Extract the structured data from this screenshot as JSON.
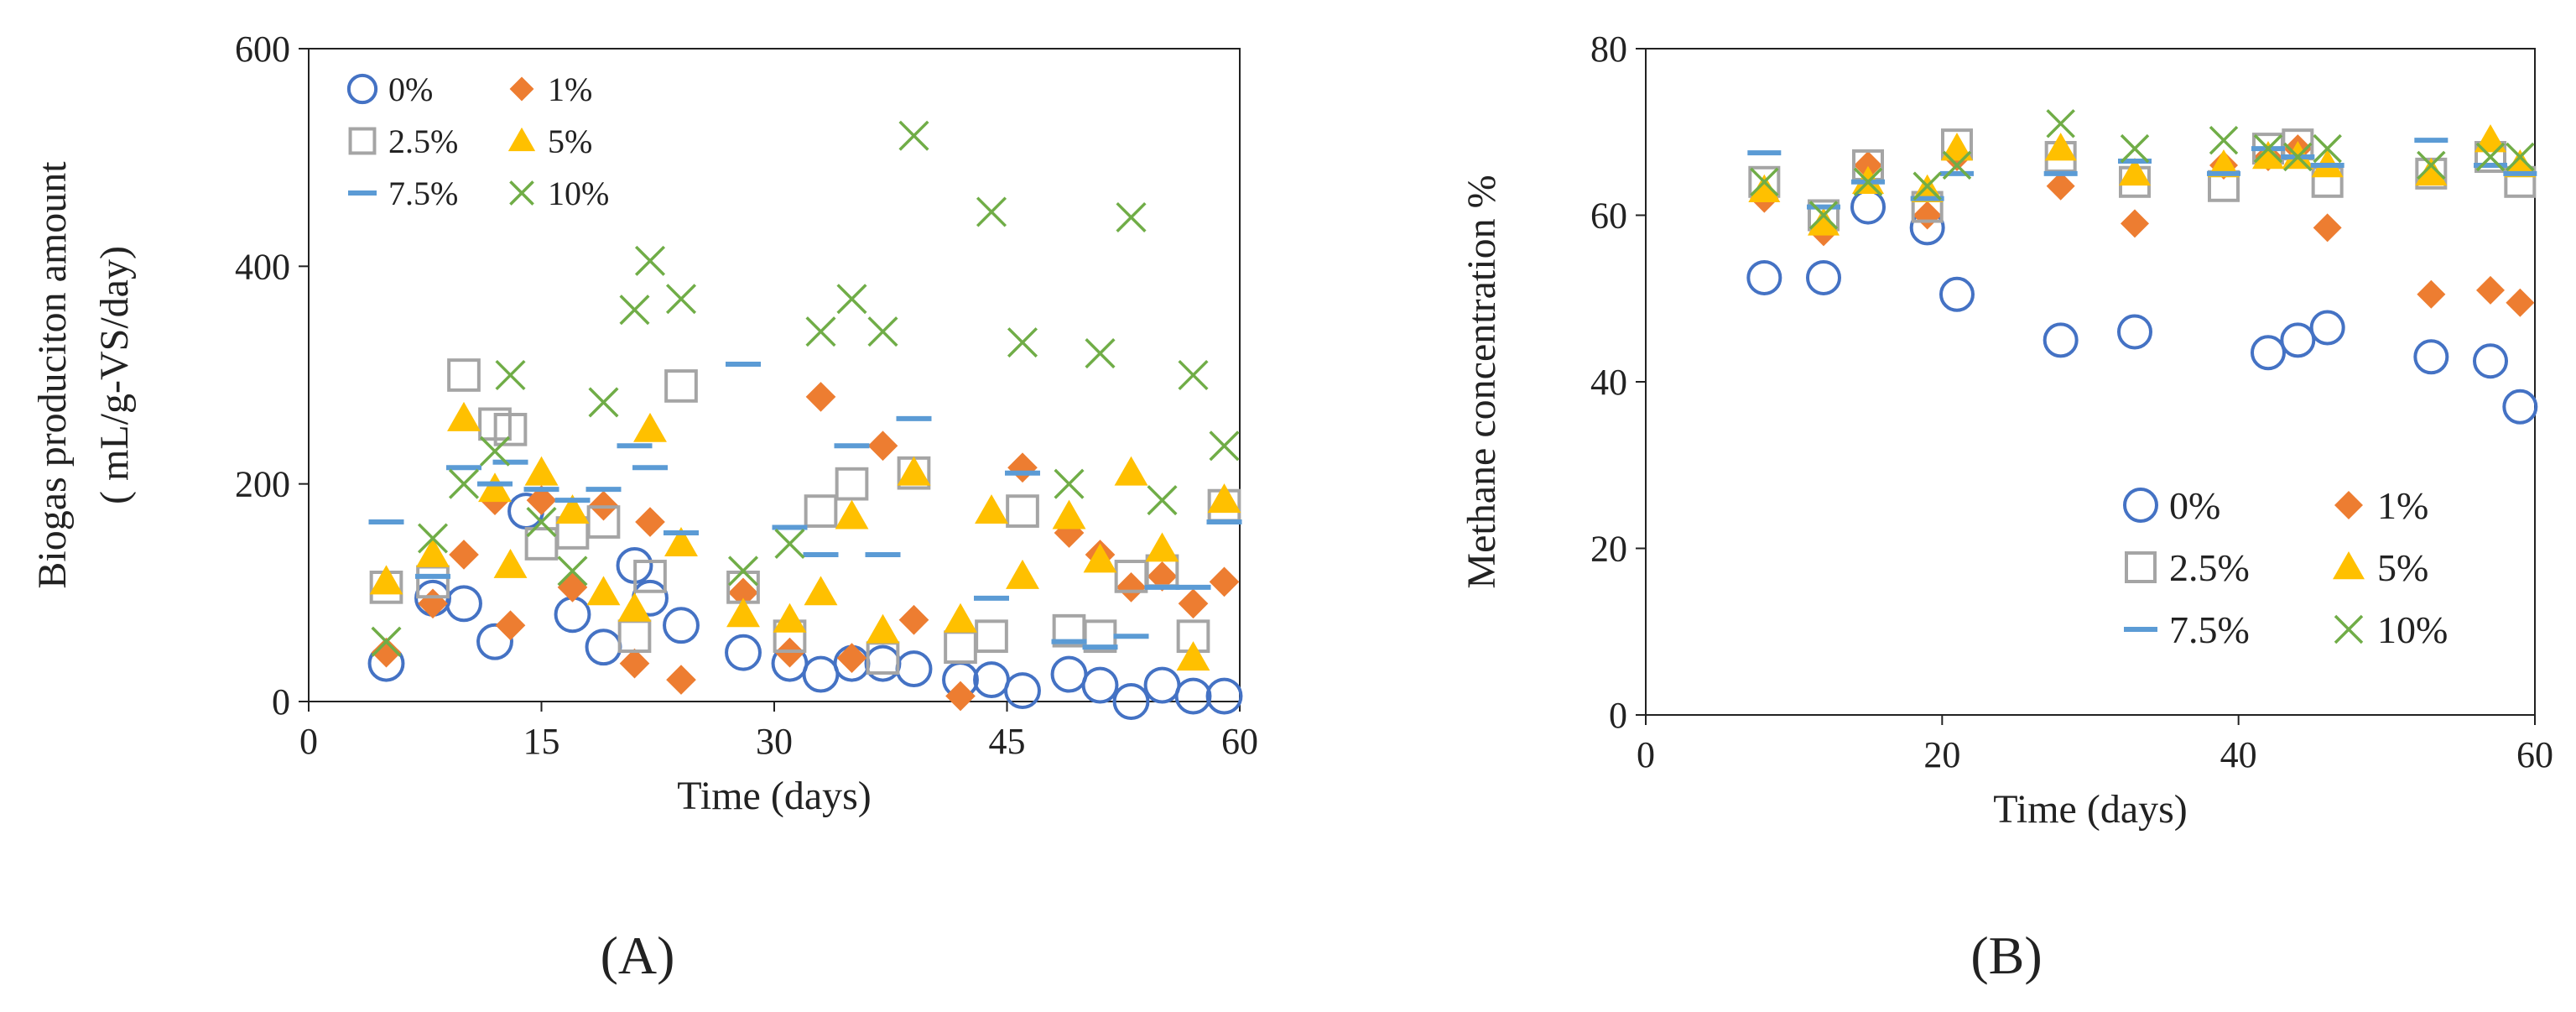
{
  "figure_labels": {
    "a": "(A)",
    "b": "(B)"
  },
  "colors": {
    "0%": "#4472C4",
    "1%": "#ED7D31",
    "2.5%": "#A5A5A5",
    "5%": "#FFC000",
    "7.5%": "#5B9BD5",
    "10%": "#70AD47"
  },
  "markers": {
    "0%": "circle",
    "1%": "diamond",
    "2.5%": "square",
    "5%": "triangle",
    "7.5%": "dash",
    "10%": "x"
  },
  "chart_data": [
    {
      "type": "scatter",
      "title": "",
      "xlabel": "Time (days)",
      "ylabel_line1": "Biogas produciton amount",
      "ylabel_line2": "( mL/g-VS/day)",
      "xlim": [
        0,
        60
      ],
      "ylim": [
        0,
        600
      ],
      "xticks": [
        "0",
        "15",
        "30",
        "45",
        "60"
      ],
      "yticks": [
        "0",
        "200",
        "400",
        "600"
      ],
      "legend_position": "top-left",
      "series": [
        {
          "name": "0%",
          "points": [
            [
              5,
              35
            ],
            [
              8,
              95
            ],
            [
              10,
              90
            ],
            [
              12,
              55
            ],
            [
              14,
              175
            ],
            [
              17,
              80
            ],
            [
              19,
              50
            ],
            [
              21,
              125
            ],
            [
              22,
              95
            ],
            [
              24,
              70
            ],
            [
              28,
              45
            ],
            [
              31,
              35
            ],
            [
              33,
              25
            ],
            [
              35,
              35
            ],
            [
              37,
              35
            ],
            [
              39,
              30
            ],
            [
              42,
              20
            ],
            [
              44,
              20
            ],
            [
              46,
              10
            ],
            [
              49,
              25
            ],
            [
              51,
              15
            ],
            [
              53,
              0
            ],
            [
              55,
              15
            ],
            [
              57,
              5
            ],
            [
              59,
              5
            ]
          ]
        },
        {
          "name": "1%",
          "points": [
            [
              5,
              45
            ],
            [
              8,
              90
            ],
            [
              10,
              135
            ],
            [
              12,
              185
            ],
            [
              13,
              70
            ],
            [
              15,
              185
            ],
            [
              17,
              105
            ],
            [
              19,
              180
            ],
            [
              21,
              35
            ],
            [
              22,
              165
            ],
            [
              24,
              20
            ],
            [
              28,
              100
            ],
            [
              31,
              45
            ],
            [
              33,
              280
            ],
            [
              35,
              40
            ],
            [
              37,
              235
            ],
            [
              39,
              75
            ],
            [
              42,
              5
            ],
            [
              46,
              215
            ],
            [
              49,
              155
            ],
            [
              51,
              135
            ],
            [
              53,
              105
            ],
            [
              55,
              115
            ],
            [
              57,
              90
            ],
            [
              59,
              110
            ]
          ]
        },
        {
          "name": "2.5%",
          "points": [
            [
              5,
              105
            ],
            [
              8,
              110
            ],
            [
              10,
              300
            ],
            [
              12,
              255
            ],
            [
              13,
              250
            ],
            [
              15,
              145
            ],
            [
              17,
              155
            ],
            [
              19,
              165
            ],
            [
              21,
              60
            ],
            [
              22,
              115
            ],
            [
              24,
              290
            ],
            [
              28,
              105
            ],
            [
              31,
              60
            ],
            [
              33,
              175
            ],
            [
              35,
              200
            ],
            [
              37,
              40
            ],
            [
              39,
              210
            ],
            [
              42,
              50
            ],
            [
              44,
              60
            ],
            [
              46,
              175
            ],
            [
              49,
              65
            ],
            [
              51,
              60
            ],
            [
              53,
              115
            ],
            [
              55,
              120
            ],
            [
              57,
              60
            ],
            [
              59,
              180
            ]
          ]
        },
        {
          "name": "5%",
          "points": [
            [
              5,
              110
            ],
            [
              8,
              135
            ],
            [
              10,
              260
            ],
            [
              12,
              195
            ],
            [
              13,
              125
            ],
            [
              15,
              210
            ],
            [
              17,
              175
            ],
            [
              19,
              100
            ],
            [
              21,
              85
            ],
            [
              22,
              250
            ],
            [
              24,
              145
            ],
            [
              28,
              80
            ],
            [
              31,
              75
            ],
            [
              33,
              100
            ],
            [
              35,
              170
            ],
            [
              37,
              65
            ],
            [
              39,
              210
            ],
            [
              42,
              75
            ],
            [
              44,
              175
            ],
            [
              46,
              115
            ],
            [
              49,
              170
            ],
            [
              51,
              130
            ],
            [
              53,
              210
            ],
            [
              55,
              140
            ],
            [
              57,
              40
            ],
            [
              59,
              185
            ]
          ]
        },
        {
          "name": "7.5%",
          "points": [
            [
              5,
              165
            ],
            [
              8,
              115
            ],
            [
              10,
              215
            ],
            [
              12,
              200
            ],
            [
              13,
              220
            ],
            [
              15,
              195
            ],
            [
              17,
              185
            ],
            [
              19,
              195
            ],
            [
              21,
              235
            ],
            [
              22,
              215
            ],
            [
              24,
              155
            ],
            [
              28,
              310
            ],
            [
              31,
              160
            ],
            [
              33,
              135
            ],
            [
              35,
              235
            ],
            [
              37,
              135
            ],
            [
              39,
              260
            ],
            [
              44,
              95
            ],
            [
              46,
              210
            ],
            [
              49,
              55
            ],
            [
              51,
              50
            ],
            [
              53,
              60
            ],
            [
              55,
              105
            ],
            [
              57,
              105
            ],
            [
              59,
              165
            ]
          ]
        },
        {
          "name": "10%",
          "points": [
            [
              5,
              55
            ],
            [
              8,
              150
            ],
            [
              10,
              200
            ],
            [
              12,
              230
            ],
            [
              13,
              300
            ],
            [
              15,
              165
            ],
            [
              17,
              120
            ],
            [
              19,
              275
            ],
            [
              21,
              360
            ],
            [
              22,
              405
            ],
            [
              24,
              370
            ],
            [
              28,
              120
            ],
            [
              31,
              145
            ],
            [
              33,
              340
            ],
            [
              35,
              370
            ],
            [
              37,
              340
            ],
            [
              39,
              520
            ],
            [
              44,
              450
            ],
            [
              46,
              330
            ],
            [
              49,
              200
            ],
            [
              51,
              320
            ],
            [
              53,
              445
            ],
            [
              55,
              185
            ],
            [
              57,
              300
            ],
            [
              59,
              235
            ]
          ]
        }
      ]
    },
    {
      "type": "scatter",
      "title": "",
      "xlabel": "Time (days)",
      "ylabel": "Methane concentration %",
      "xlim": [
        0,
        60
      ],
      "ylim": [
        0,
        80
      ],
      "xticks": [
        "0",
        "20",
        "40",
        "60"
      ],
      "yticks": [
        "0",
        "20",
        "40",
        "60",
        "80"
      ],
      "legend_position": "bottom-right",
      "series": [
        {
          "name": "0%",
          "points": [
            [
              8,
              52.5
            ],
            [
              12,
              52.5
            ],
            [
              15,
              61
            ],
            [
              19,
              58.5
            ],
            [
              21,
              50.5
            ],
            [
              28,
              45
            ],
            [
              33,
              46
            ],
            [
              42,
              43.5
            ],
            [
              44,
              45
            ],
            [
              46,
              46.5
            ],
            [
              53,
              43
            ],
            [
              57,
              42.5
            ],
            [
              59,
              37
            ]
          ]
        },
        {
          "name": "1%",
          "points": [
            [
              8,
              62
            ],
            [
              12,
              58
            ],
            [
              15,
              66
            ],
            [
              19,
              60
            ],
            [
              21,
              67
            ],
            [
              28,
              63.5
            ],
            [
              33,
              59
            ],
            [
              39,
              66
            ],
            [
              42,
              67
            ],
            [
              44,
              68
            ],
            [
              46,
              58.5
            ],
            [
              53,
              50.5
            ],
            [
              57,
              51
            ],
            [
              59,
              49.5
            ]
          ]
        },
        {
          "name": "2.5%",
          "points": [
            [
              8,
              64
            ],
            [
              12,
              60
            ],
            [
              15,
              66
            ],
            [
              19,
              61
            ],
            [
              21,
              68.5
            ],
            [
              28,
              67
            ],
            [
              33,
              64
            ],
            [
              39,
              63.5
            ],
            [
              42,
              68
            ],
            [
              44,
              68.5
            ],
            [
              46,
              64
            ],
            [
              53,
              65
            ],
            [
              57,
              67
            ],
            [
              59,
              64
            ]
          ]
        },
        {
          "name": "5%",
          "points": [
            [
              8,
              63
            ],
            [
              12,
              59
            ],
            [
              15,
              64
            ],
            [
              19,
              63
            ],
            [
              21,
              68
            ],
            [
              28,
              68
            ],
            [
              33,
              65
            ],
            [
              39,
              66
            ],
            [
              42,
              67
            ],
            [
              44,
              67
            ],
            [
              46,
              66
            ],
            [
              53,
              65
            ],
            [
              57,
              69
            ],
            [
              59,
              66
            ]
          ]
        },
        {
          "name": "7.5%",
          "points": [
            [
              8,
              67.5
            ],
            [
              12,
              61
            ],
            [
              15,
              64
            ],
            [
              19,
              62
            ],
            [
              21,
              65
            ],
            [
              28,
              65
            ],
            [
              33,
              66.5
            ],
            [
              39,
              65
            ],
            [
              42,
              68
            ],
            [
              44,
              67
            ],
            [
              46,
              66
            ],
            [
              53,
              69
            ],
            [
              57,
              66
            ],
            [
              59,
              65
            ]
          ]
        },
        {
          "name": "10%",
          "points": [
            [
              8,
              64
            ],
            [
              12,
              60
            ],
            [
              15,
              64
            ],
            [
              19,
              63.5
            ],
            [
              21,
              66
            ],
            [
              28,
              71
            ],
            [
              33,
              68
            ],
            [
              39,
              69
            ],
            [
              42,
              68
            ],
            [
              44,
              67
            ],
            [
              46,
              68
            ],
            [
              53,
              66
            ],
            [
              57,
              67
            ],
            [
              59,
              67
            ]
          ]
        }
      ]
    }
  ]
}
